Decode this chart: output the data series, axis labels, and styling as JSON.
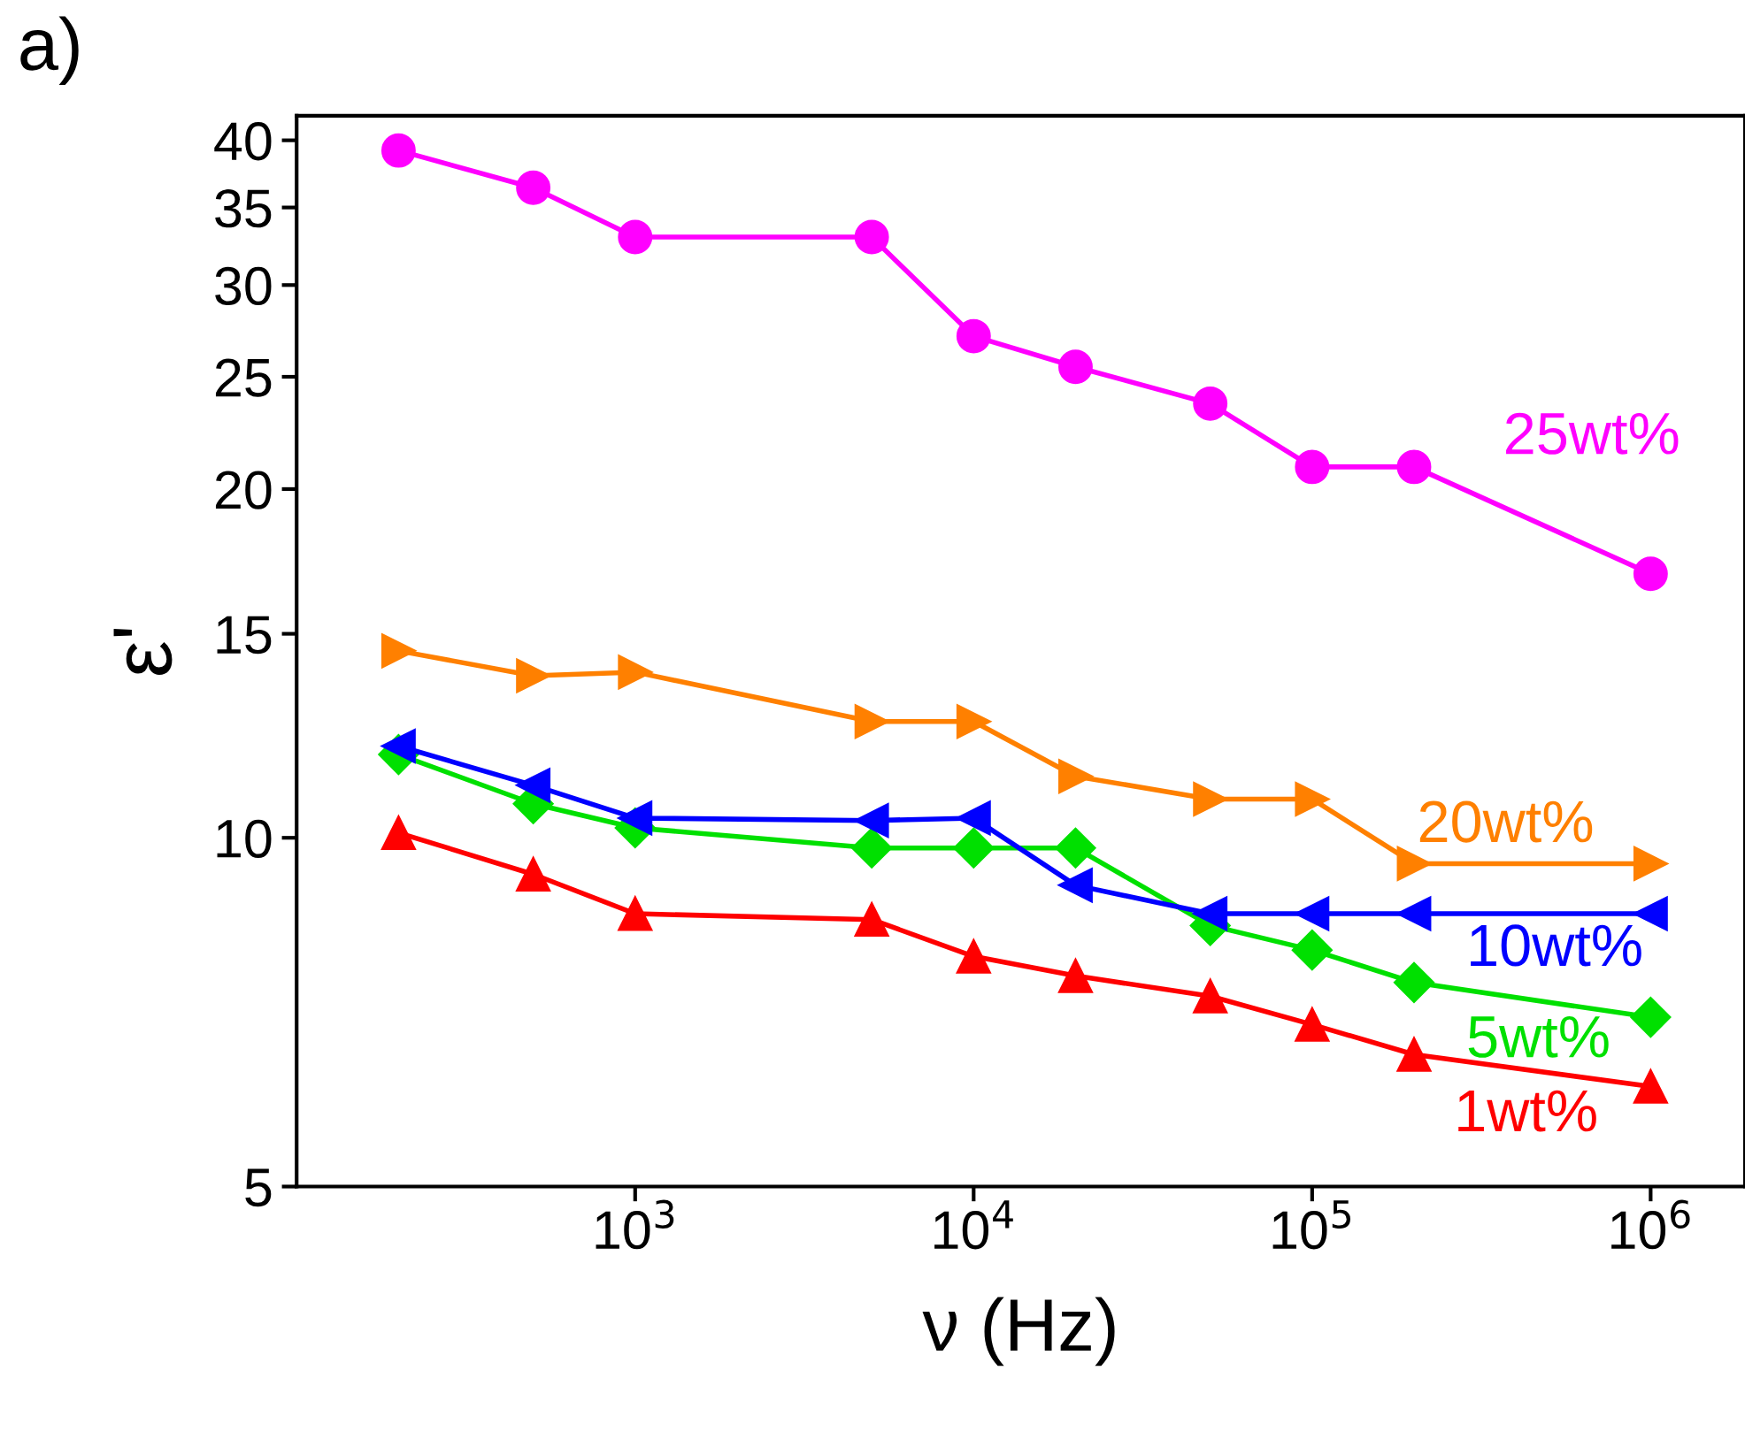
{
  "chart_data": {
    "type": "line",
    "xlabel": "ν (Hz)",
    "ylabel": "ε'",
    "log": "xy",
    "annotations": [
      "a)"
    ],
    "x": [
      200,
      500,
      1000,
      5000,
      10000,
      20000,
      50000,
      100000,
      200000,
      1000000
    ],
    "xlim": [
      100,
      1900000
    ],
    "xticks": [
      {
        "value": 1000,
        "label": "10$^{3}$"
      },
      {
        "value": 10000,
        "label": "10$^{4}$"
      },
      {
        "value": 100000,
        "label": "10$^{5}$"
      },
      {
        "value": 1000000,
        "label": "10$^{6}$"
      }
    ],
    "ylim": [
      5,
      42
    ],
    "yticks": [
      5,
      10,
      15,
      20,
      25,
      30,
      35,
      40
    ],
    "grid": false,
    "legend": false,
    "series": [
      {
        "name": "25wt%",
        "color": "#ff00ff",
        "marker": "circle",
        "values": [
          39.2,
          36.4,
          33.0,
          33.0,
          27.1,
          25.5,
          23.7,
          20.9,
          20.9,
          16.9
        ]
      },
      {
        "name": "20wt%",
        "color": "#ff8000",
        "marker": "triangle-right",
        "values": [
          14.5,
          13.8,
          13.9,
          12.6,
          12.6,
          11.3,
          10.8,
          10.8,
          9.5,
          9.5
        ]
      },
      {
        "name": "10wt%",
        "color": "#0000ff",
        "marker": "triangle-left",
        "values": [
          12.0,
          11.1,
          10.4,
          10.35,
          10.4,
          9.1,
          8.6,
          8.6,
          8.6,
          8.6
        ]
      },
      {
        "name": "5wt%",
        "color": "#00e000",
        "marker": "diamond",
        "values": [
          11.8,
          10.7,
          10.2,
          9.8,
          9.8,
          9.8,
          8.4,
          8.0,
          7.5,
          7.0
        ]
      },
      {
        "name": "1wt%",
        "color": "#ff0000",
        "marker": "triangle",
        "values": [
          10.1,
          9.3,
          8.6,
          8.5,
          7.9,
          7.6,
          7.3,
          6.9,
          6.5,
          6.1
        ]
      }
    ]
  }
}
